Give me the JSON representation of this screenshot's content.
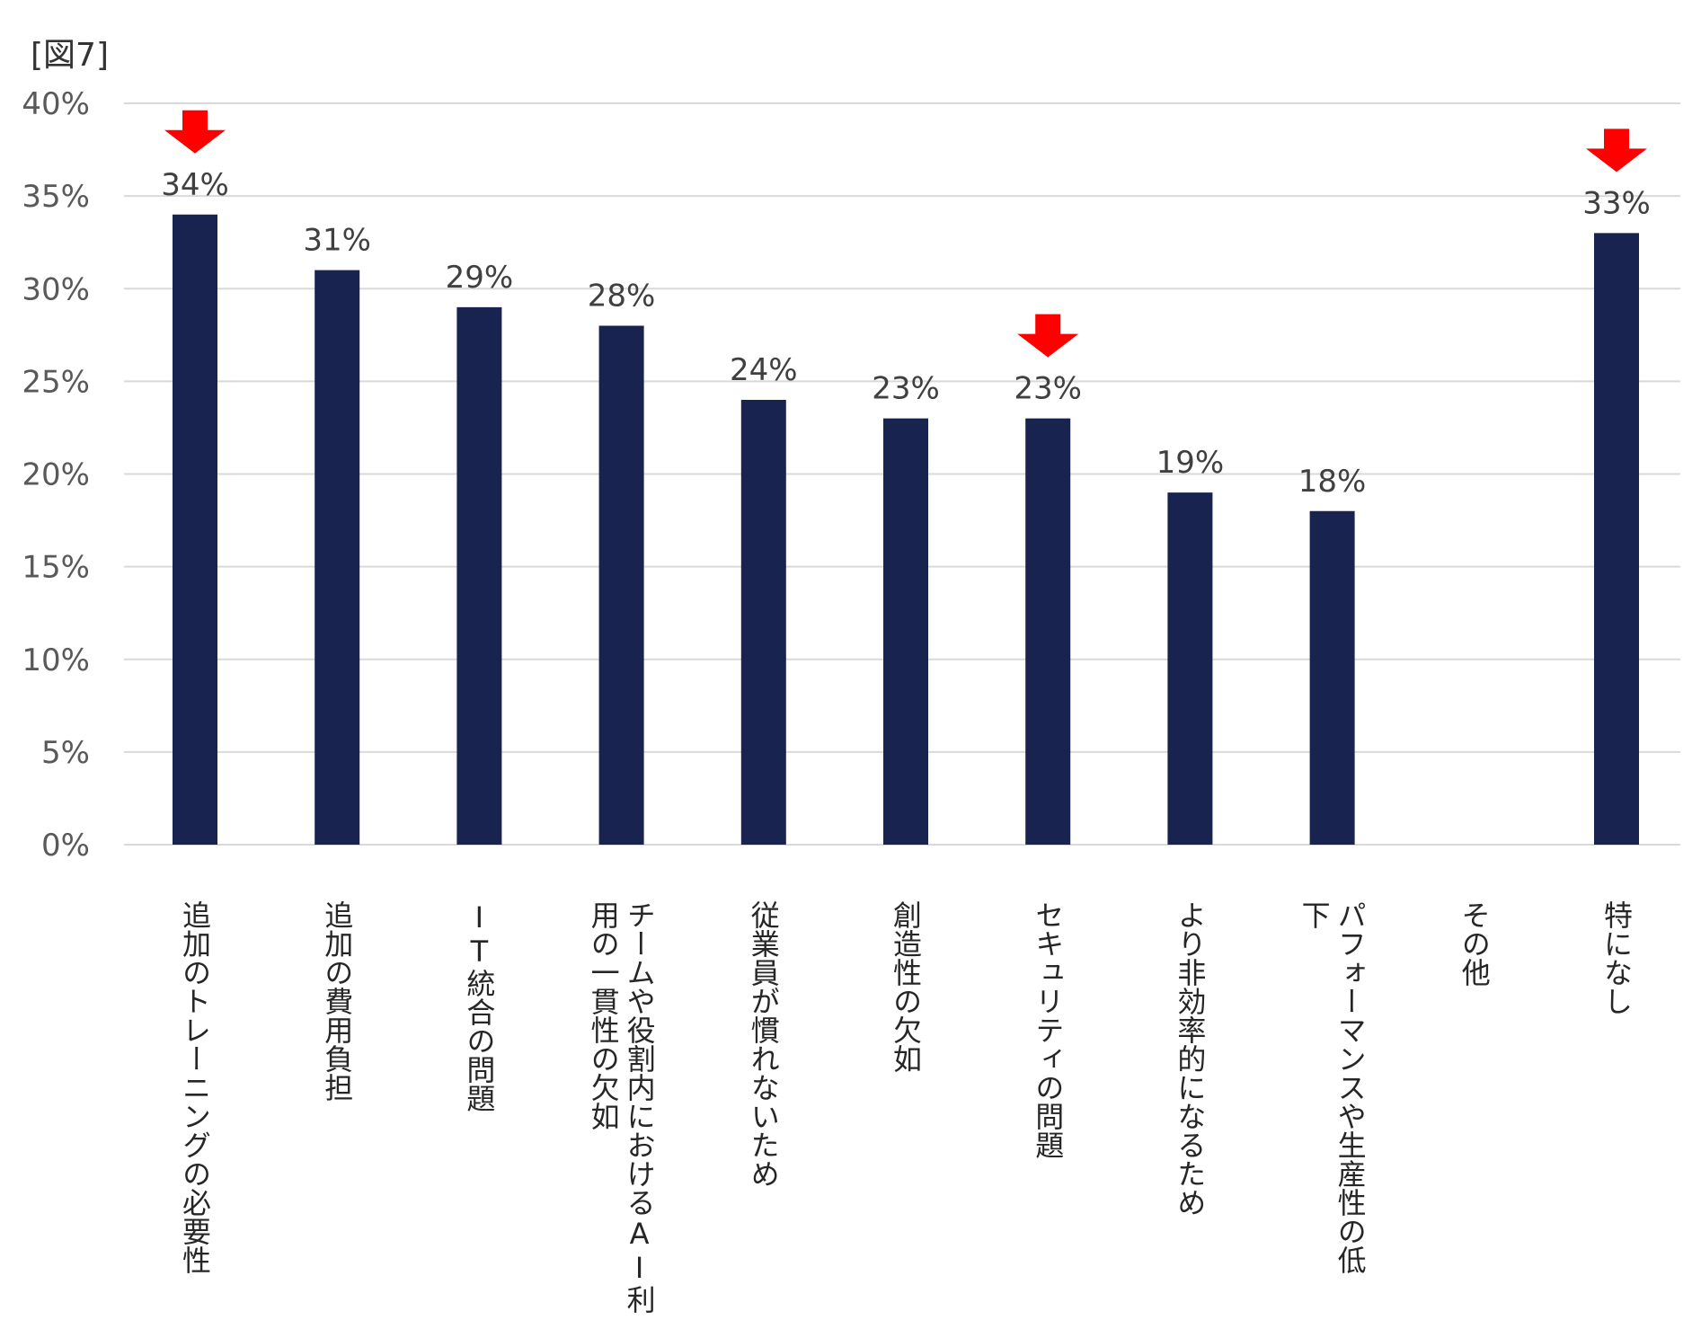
{
  "figure_label": "[図7]",
  "colors": {
    "bar": "#18234f",
    "grid": "#d9d9d9",
    "arrow": "#ff0000"
  },
  "chart_data": {
    "type": "bar",
    "title": "",
    "xlabel": "",
    "ylabel": "",
    "ylim": [
      0,
      40
    ],
    "y_ticks": [
      "0%",
      "5%",
      "10%",
      "15%",
      "20%",
      "25%",
      "30%",
      "35%",
      "40%"
    ],
    "grid": true,
    "categories": [
      "追加のトレーニングの必要性",
      "追加の費用負担",
      "IT統合の問題",
      "チームや役割内におけるAI利用の一貫性の欠如",
      "従業員が慣れないため",
      "創造性の欠如",
      "セキュリティの問題",
      "より非効率的になるため",
      "パフォーマンスや生産性の低下",
      "その他",
      "特になし"
    ],
    "category_lines": [
      [
        "追加のトレーニングの必要性"
      ],
      [
        "追加の費用負担"
      ],
      [
        "IT統合の問題"
      ],
      [
        "チームや役割内におけるAI利",
        "用の一貫性の欠如"
      ],
      [
        "従業員が慣れないため"
      ],
      [
        "創造性の欠如"
      ],
      [
        "セキュリティの問題"
      ],
      [
        "より非効率的になるため"
      ],
      [
        "パフォーマンスや生産性の低",
        "下"
      ],
      [
        "その他"
      ],
      [
        "特になし"
      ]
    ],
    "values": [
      34,
      31,
      29,
      28,
      24,
      23,
      23,
      19,
      18,
      null,
      33
    ],
    "data_labels": [
      "34%",
      "31%",
      "29%",
      "28%",
      "24%",
      "23%",
      "23%",
      "19%",
      "18%",
      "",
      "33%"
    ],
    "highlighted": [
      0,
      6,
      10
    ],
    "highlight_marker": "down-arrow"
  }
}
